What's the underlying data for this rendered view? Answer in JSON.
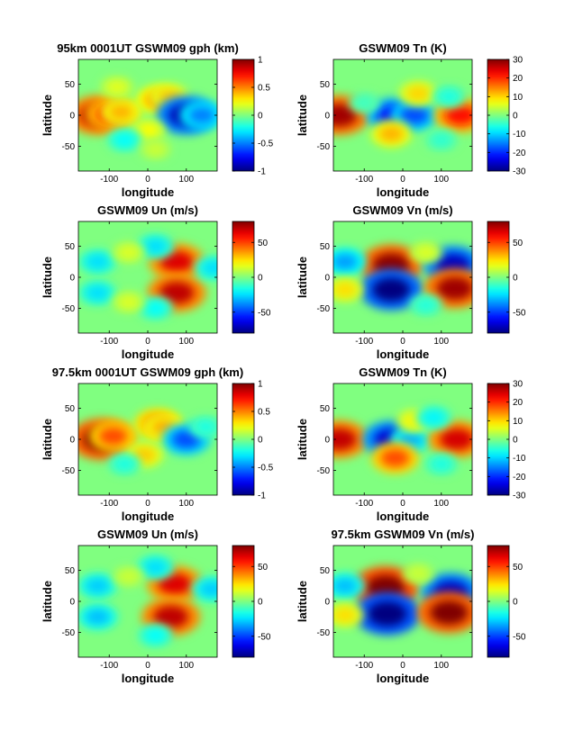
{
  "figure": {
    "colormap": "jet",
    "background": "#ffffff",
    "map_extent_color": "#84ff7a"
  },
  "chart_data": [
    {
      "type": "heatmap",
      "title": "95km 0001UT GSWM09 gph (km)",
      "xlabel": "longitude",
      "ylabel": "latitude",
      "xlim": [
        -180,
        180
      ],
      "ylim": [
        -90,
        90
      ],
      "xticks": [
        -100,
        0,
        100
      ],
      "xticklabels": [
        "-100",
        "0",
        "100"
      ],
      "yticks": [
        50,
        0,
        -50
      ],
      "yticklabels": [
        "50",
        "0",
        "-50"
      ],
      "clim": [
        -1,
        1
      ],
      "colorbar_ticks": [
        1,
        0.5,
        0,
        -0.5,
        -1
      ],
      "colorbar_ticklabels": [
        "1",
        "0.5",
        "0",
        "-0.5",
        "-1"
      ],
      "features": [
        {
          "lon": -130,
          "lat": 0,
          "value": 0.9
        },
        {
          "lon": -95,
          "lat": 2,
          "value": 0.7
        },
        {
          "lon": -70,
          "lat": 5,
          "value": 0.4
        },
        {
          "lon": 25,
          "lat": 25,
          "value": 0.45
        },
        {
          "lon": 55,
          "lat": 30,
          "value": 0.35
        },
        {
          "lon": 100,
          "lat": 0,
          "value": -0.9
        },
        {
          "lon": 140,
          "lat": 0,
          "value": -0.5
        },
        {
          "lon": 0,
          "lat": -25,
          "value": 0.25
        },
        {
          "lon": -60,
          "lat": -40,
          "value": -0.25
        },
        {
          "lon": -80,
          "lat": 45,
          "value": 0.2
        },
        {
          "lon": 20,
          "lat": -55,
          "value": 0.15
        }
      ]
    },
    {
      "type": "heatmap",
      "title": "GSWM09 Tn (K)",
      "xlabel": "longitude",
      "ylabel": "latitude",
      "xlim": [
        -180,
        180
      ],
      "ylim": [
        -90,
        90
      ],
      "xticks": [
        -100,
        0,
        100
      ],
      "xticklabels": [
        "-100",
        "0",
        "100"
      ],
      "yticks": [
        50,
        0,
        -50
      ],
      "yticklabels": [
        "50",
        "0",
        "-50"
      ],
      "clim": [
        -30,
        30
      ],
      "colorbar_ticks": [
        30,
        20,
        10,
        0,
        -10,
        -20,
        -30
      ],
      "colorbar_ticklabels": [
        "30",
        "20",
        "10",
        "0",
        "-10",
        "-20",
        "-30"
      ],
      "features": [
        {
          "lon": -165,
          "lat": 0,
          "value": 28
        },
        {
          "lon": -25,
          "lat": 0,
          "value": -22
        },
        {
          "lon": 30,
          "lat": 0,
          "value": -18
        },
        {
          "lon": 150,
          "lat": 0,
          "value": 22
        },
        {
          "lon": 40,
          "lat": 35,
          "value": 10
        },
        {
          "lon": -30,
          "lat": -30,
          "value": 12
        },
        {
          "lon": 120,
          "lat": 30,
          "value": -6
        },
        {
          "lon": 100,
          "lat": -40,
          "value": -5
        },
        {
          "lon": -100,
          "lat": 20,
          "value": -4
        }
      ]
    },
    {
      "type": "heatmap",
      "title": "GSWM09 Un (m/s)",
      "xlabel": "longitude",
      "ylabel": "latitude",
      "xlim": [
        -180,
        180
      ],
      "ylim": [
        -90,
        90
      ],
      "xticks": [
        -100,
        0,
        100
      ],
      "xticklabels": [
        "-100",
        "0",
        "100"
      ],
      "yticks": [
        50,
        0,
        -50
      ],
      "yticklabels": [
        "50",
        "0",
        "-50"
      ],
      "clim": [
        -80,
        80
      ],
      "colorbar_ticks": [
        50,
        0,
        -50
      ],
      "colorbar_ticklabels": [
        "50",
        "0",
        "-50"
      ],
      "features": [
        {
          "lon": 75,
          "lat": 25,
          "value": 65
        },
        {
          "lon": 75,
          "lat": -25,
          "value": 70
        },
        {
          "lon": -130,
          "lat": 25,
          "value": -25
        },
        {
          "lon": -130,
          "lat": -25,
          "value": -25
        },
        {
          "lon": 20,
          "lat": 50,
          "value": -25
        },
        {
          "lon": 20,
          "lat": -50,
          "value": -20
        },
        {
          "lon": 170,
          "lat": 15,
          "value": -25
        },
        {
          "lon": -50,
          "lat": 40,
          "value": 15
        },
        {
          "lon": -50,
          "lat": -40,
          "value": 15
        }
      ]
    },
    {
      "type": "heatmap",
      "title": "GSWM09 Vn (m/s)",
      "xlabel": "longitude",
      "ylabel": "latitude",
      "xlim": [
        -180,
        180
      ],
      "ylim": [
        -90,
        90
      ],
      "xticks": [
        -100,
        0,
        100
      ],
      "xticklabels": [
        "-100",
        "0",
        "100"
      ],
      "yticks": [
        50,
        0,
        -50
      ],
      "yticklabels": [
        "50",
        "0",
        "-50"
      ],
      "clim": [
        -80,
        80
      ],
      "colorbar_ticks": [
        50,
        0,
        -50
      ],
      "colorbar_ticklabels": [
        "50",
        "0",
        "-50"
      ],
      "features": [
        {
          "lon": -30,
          "lat": 20,
          "value": 78
        },
        {
          "lon": -30,
          "lat": -20,
          "value": -80
        },
        {
          "lon": 130,
          "lat": 20,
          "value": -70
        },
        {
          "lon": 135,
          "lat": -18,
          "value": 75
        },
        {
          "lon": -150,
          "lat": 25,
          "value": -35
        },
        {
          "lon": -150,
          "lat": -20,
          "value": 25
        },
        {
          "lon": 60,
          "lat": 40,
          "value": 15
        },
        {
          "lon": 60,
          "lat": -45,
          "value": -15
        }
      ]
    },
    {
      "type": "heatmap",
      "title": "97.5km 0001UT GSWM09 gph (km)",
      "xlabel": "longitude",
      "ylabel": "latitude",
      "xlim": [
        -180,
        180
      ],
      "ylim": [
        -90,
        90
      ],
      "xticks": [
        -100,
        0,
        100
      ],
      "xticklabels": [
        "-100",
        "0",
        "100"
      ],
      "yticks": [
        50,
        0,
        -50
      ],
      "yticklabels": [
        "50",
        "0",
        "-50"
      ],
      "clim": [
        -1,
        1
      ],
      "colorbar_ticks": [
        1,
        0.5,
        0,
        -0.5,
        -1
      ],
      "colorbar_ticklabels": [
        "1",
        "0.5",
        "0",
        "-0.5",
        "-1"
      ],
      "features": [
        {
          "lon": -120,
          "lat": 0,
          "value": 1.0
        },
        {
          "lon": -90,
          "lat": 5,
          "value": 0.6
        },
        {
          "lon": 25,
          "lat": 25,
          "value": 0.55
        },
        {
          "lon": 40,
          "lat": 20,
          "value": 0.4
        },
        {
          "lon": 100,
          "lat": 0,
          "value": -0.6
        },
        {
          "lon": -10,
          "lat": -25,
          "value": 0.35
        },
        {
          "lon": -60,
          "lat": -40,
          "value": -0.2
        },
        {
          "lon": 150,
          "lat": 20,
          "value": -0.2
        }
      ]
    },
    {
      "type": "heatmap",
      "title": "GSWM09 Tn (K)",
      "xlabel": "longitude",
      "ylabel": "latitude",
      "xlim": [
        -180,
        180
      ],
      "ylim": [
        -90,
        90
      ],
      "xticks": [
        -100,
        0,
        100
      ],
      "xticklabels": [
        "-100",
        "0",
        "100"
      ],
      "yticks": [
        50,
        0,
        -50
      ],
      "yticklabels": [
        "50",
        "0",
        "-50"
      ],
      "clim": [
        -30,
        30
      ],
      "colorbar_ticks": [
        30,
        20,
        10,
        0,
        -10,
        -20,
        -30
      ],
      "colorbar_ticklabels": [
        "30",
        "20",
        "10",
        "0",
        "-10",
        "-20",
        "-30"
      ],
      "features": [
        {
          "lon": -165,
          "lat": 0,
          "value": 26
        },
        {
          "lon": -30,
          "lat": 0,
          "value": -25
        },
        {
          "lon": 20,
          "lat": 0,
          "value": -12
        },
        {
          "lon": 140,
          "lat": 0,
          "value": 25
        },
        {
          "lon": -20,
          "lat": -30,
          "value": 18
        },
        {
          "lon": 30,
          "lat": 30,
          "value": 8
        },
        {
          "lon": 80,
          "lat": 35,
          "value": -8
        },
        {
          "lon": 100,
          "lat": -40,
          "value": -6
        }
      ]
    },
    {
      "type": "heatmap",
      "title": "GSWM09 Un (m/s)",
      "xlabel": "longitude",
      "ylabel": "latitude",
      "xlim": [
        -180,
        180
      ],
      "ylim": [
        -90,
        90
      ],
      "xticks": [
        -100,
        0,
        100
      ],
      "xticklabels": [
        "-100",
        "0",
        "100"
      ],
      "yticks": [
        50,
        0,
        -50
      ],
      "yticklabels": [
        "50",
        "0",
        "-50"
      ],
      "clim": [
        -80,
        80
      ],
      "colorbar_ticks": [
        50,
        0,
        -50
      ],
      "colorbar_ticklabels": [
        "50",
        "0",
        "-50"
      ],
      "features": [
        {
          "lon": 70,
          "lat": 28,
          "value": 65
        },
        {
          "lon": 60,
          "lat": -25,
          "value": 70
        },
        {
          "lon": -130,
          "lat": 25,
          "value": -28
        },
        {
          "lon": -130,
          "lat": -25,
          "value": -30
        },
        {
          "lon": 20,
          "lat": 55,
          "value": -25
        },
        {
          "lon": 20,
          "lat": -55,
          "value": -20
        },
        {
          "lon": 165,
          "lat": 20,
          "value": -28
        },
        {
          "lon": -50,
          "lat": 40,
          "value": 12
        }
      ]
    },
    {
      "type": "heatmap",
      "title": "97.5km GSWM09 Vn (m/s)",
      "xlabel": "longitude",
      "ylabel": "latitude",
      "xlim": [
        -180,
        180
      ],
      "ylim": [
        -90,
        90
      ],
      "xticks": [
        -100,
        0,
        100
      ],
      "xticklabels": [
        "-100",
        "0",
        "100"
      ],
      "yticks": [
        50,
        0,
        -50
      ],
      "yticklabels": [
        "50",
        "0",
        "-50"
      ],
      "clim": [
        -80,
        80
      ],
      "colorbar_ticks": [
        50,
        0,
        -50
      ],
      "colorbar_ticklabels": [
        "50",
        "0",
        "-50"
      ],
      "features": [
        {
          "lon": -45,
          "lat": 22,
          "value": 85
        },
        {
          "lon": -40,
          "lat": -20,
          "value": -85
        },
        {
          "lon": 125,
          "lat": 15,
          "value": -70
        },
        {
          "lon": 120,
          "lat": -18,
          "value": 80
        },
        {
          "lon": -150,
          "lat": 25,
          "value": -30
        },
        {
          "lon": -150,
          "lat": -22,
          "value": 25
        },
        {
          "lon": 40,
          "lat": 45,
          "value": 12
        }
      ]
    }
  ]
}
